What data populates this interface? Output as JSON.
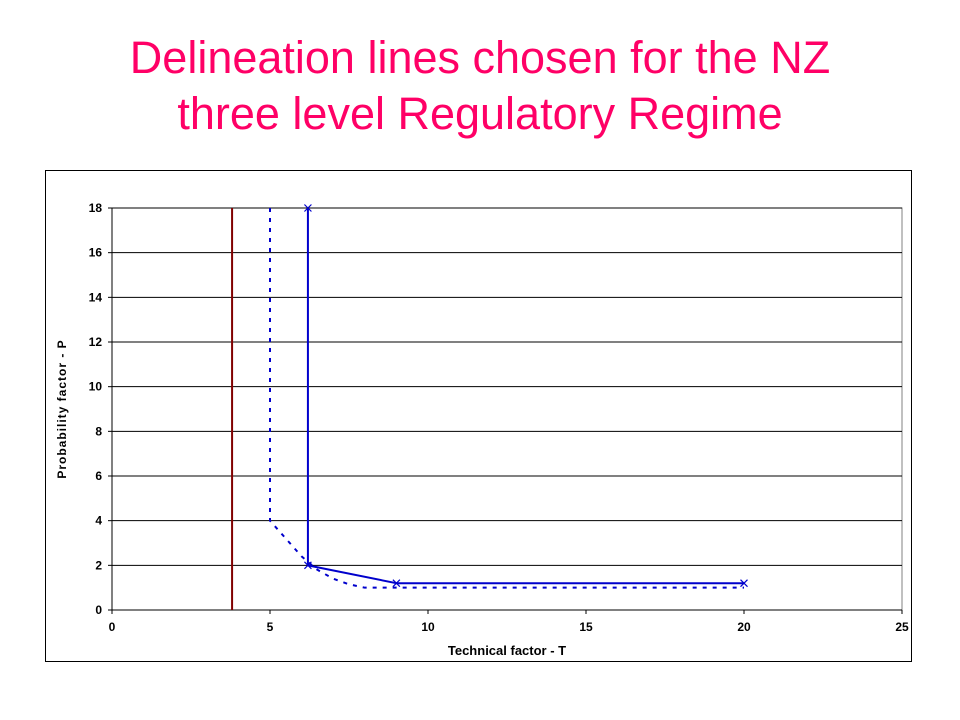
{
  "slide": {
    "title_line1": "Delineation lines chosen for the NZ",
    "title_line2": "three level Regulatory Regime"
  },
  "colors": {
    "title": "#ff0066",
    "line_blue": "#0000cc",
    "line_red": "#800000",
    "grid": "#000000"
  },
  "chart_data": {
    "type": "line",
    "title": "",
    "xlabel": "Technical factor - T",
    "ylabel": "Probability  factor - P",
    "xlim": [
      0,
      25
    ],
    "ylim": [
      0,
      18
    ],
    "xticks": [
      0,
      5,
      10,
      15,
      20,
      25
    ],
    "yticks": [
      0,
      2,
      4,
      6,
      8,
      10,
      12,
      14,
      16,
      18
    ],
    "grid": "horizontal",
    "legend": "none",
    "series": [
      {
        "style": "solid-markers",
        "color": "#0000cc",
        "x": [
          6.2,
          6.2,
          9.0,
          20.0
        ],
        "y": [
          18.0,
          2.0,
          1.2,
          1.2
        ]
      },
      {
        "style": "dotted",
        "color": "#0000cc",
        "x": [
          5.0,
          5.0,
          5.5,
          6.0,
          6.5,
          7.0,
          7.5,
          8.0,
          20.0
        ],
        "y": [
          18.0,
          4.0,
          3.2,
          2.4,
          1.8,
          1.4,
          1.15,
          1.0,
          1.0
        ]
      },
      {
        "style": "solid",
        "color": "#800000",
        "x": [
          3.8,
          3.8
        ],
        "y": [
          0.0,
          18.0
        ]
      }
    ]
  }
}
